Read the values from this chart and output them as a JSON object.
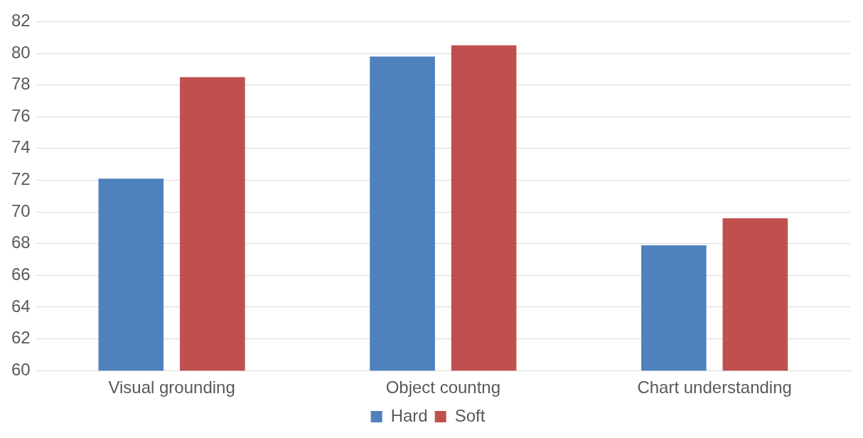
{
  "chart_data": {
    "type": "bar",
    "categories": [
      "Visual grounding",
      "Object countng",
      "Chart understanding"
    ],
    "series": [
      {
        "name": "Hard",
        "color": "#4f81bd",
        "values": [
          72.1,
          79.8,
          67.9
        ]
      },
      {
        "name": "Soft",
        "color": "#c0504d",
        "values": [
          78.5,
          80.5,
          69.6
        ]
      }
    ],
    "ylim": [
      60,
      82
    ],
    "yticks": [
      60,
      62,
      64,
      66,
      68,
      70,
      72,
      74,
      76,
      78,
      80,
      82
    ],
    "grid": "y",
    "legend": "bottom"
  }
}
